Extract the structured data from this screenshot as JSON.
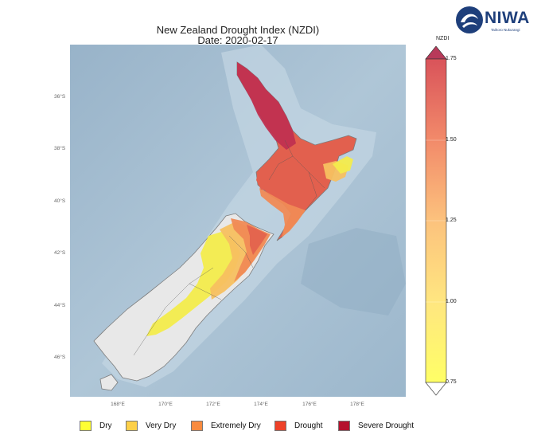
{
  "title": "New Zealand Drought Index (NZDI)",
  "date_line": "Date: 2020-02-17",
  "logo": {
    "wordmark": "NIWA",
    "tagline": "Taihoro Nukurangi",
    "icon": "niwa-swirl-logo"
  },
  "map": {
    "lat_ticks": [
      "36°S",
      "38°S",
      "40°S",
      "42°S",
      "44°S",
      "46°S"
    ],
    "lon_ticks": [
      "168°E",
      "170°E",
      "172°E",
      "174°E",
      "176°E",
      "178°E"
    ]
  },
  "colorbar": {
    "label": "NZDI",
    "ticks": [
      "1.75",
      "1.50",
      "1.25",
      "1.00",
      "0.75"
    ],
    "min": 0.75,
    "max": 1.75,
    "extend": "both"
  },
  "legend": [
    {
      "label": "Dry",
      "color": "#ffff33"
    },
    {
      "label": "Very Dry",
      "color": "#fdd049"
    },
    {
      "label": "Extremely Dry",
      "color": "#f98b3f"
    },
    {
      "label": "Drought",
      "color": "#ee4128"
    },
    {
      "label": "Severe Drought",
      "color": "#b5122e"
    }
  ],
  "colors": {
    "ocean": "#a9c1d4",
    "land_no_drought": "#e8e8e8",
    "severe": "#c03050",
    "drought": "#e2604e",
    "extremely_dry": "#f08a55",
    "very_dry": "#f7c060",
    "dry": "#f3ec4c"
  }
}
